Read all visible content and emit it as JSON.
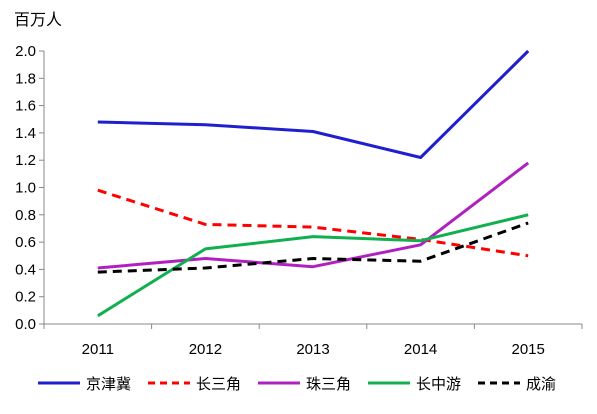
{
  "chart_data": {
    "type": "line",
    "title": "",
    "unit_label": "百万人",
    "xlabel": "",
    "ylabel": "",
    "categories": [
      "2011",
      "2012",
      "2013",
      "2014",
      "2015"
    ],
    "y_ticks": [
      "0.0",
      "0.2",
      "0.4",
      "0.6",
      "0.8",
      "1.0",
      "1.2",
      "1.4",
      "1.6",
      "1.8",
      "2.0"
    ],
    "ylim": [
      0,
      2.0
    ],
    "grid": false,
    "legend_position": "bottom",
    "series": [
      {
        "name": "京津冀",
        "color": "#1f1fd0",
        "dash": "solid",
        "values": [
          1.48,
          1.46,
          1.41,
          1.22,
          2.0
        ]
      },
      {
        "name": "长三角",
        "color": "#ff0000",
        "dash": "dashed",
        "values": [
          0.98,
          0.73,
          0.71,
          0.62,
          0.5
        ]
      },
      {
        "name": "珠三角",
        "color": "#b020c0",
        "dash": "solid",
        "values": [
          0.41,
          0.48,
          0.42,
          0.58,
          1.18
        ]
      },
      {
        "name": "长中游",
        "color": "#10b050",
        "dash": "solid",
        "values": [
          0.06,
          0.55,
          0.64,
          0.61,
          0.8
        ]
      },
      {
        "name": "成渝",
        "color": "#000000",
        "dash": "dashed",
        "values": [
          0.38,
          0.41,
          0.48,
          0.46,
          0.74
        ]
      }
    ]
  }
}
